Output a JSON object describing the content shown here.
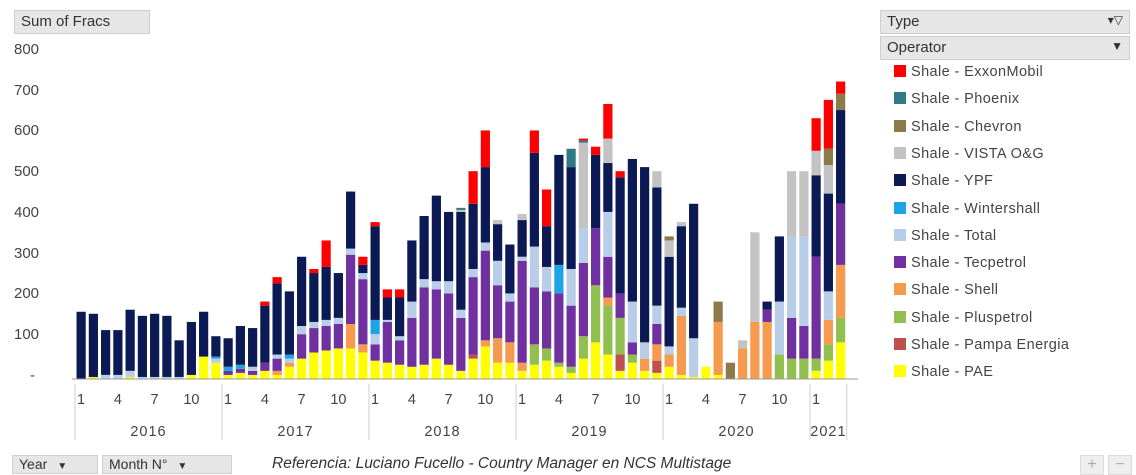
{
  "chart_data": {
    "type": "bar",
    "stacked": true,
    "title": "",
    "value_field": "Sum of Fracs",
    "filter_field": "Type",
    "legend_field": "Operator",
    "row_fields": [
      "Year",
      "Month N°"
    ],
    "ylim": [
      0,
      800
    ],
    "yticks": [
      "800",
      "700",
      "600",
      "500",
      "400",
      "300",
      "200",
      "100",
      "-"
    ],
    "xtick_labels": [
      "1",
      "4",
      "7",
      "10",
      "1",
      "4",
      "7",
      "10",
      "1",
      "4",
      "7",
      "10",
      "1",
      "4",
      "7",
      "10",
      "1",
      "4",
      "7",
      "10",
      "1"
    ],
    "years": [
      "2016",
      "2017",
      "2018",
      "2019",
      "2020",
      "2021"
    ],
    "grid": false,
    "legend_position": "right",
    "series_order": [
      "PAE",
      "Pampa",
      "Plus",
      "Shell",
      "Tec",
      "Total",
      "Wint",
      "YPF",
      "VISTA",
      "Chev",
      "Phoe",
      "Exxon"
    ],
    "series": [
      {
        "name": "Shale - ExxonMobil",
        "key": "Exxon",
        "color": "#ff0000"
      },
      {
        "name": "Shale - Phoenix",
        "key": "Phoe",
        "color": "#2e7a86"
      },
      {
        "name": "Shale - Chevron",
        "key": "Chev",
        "color": "#8c7a4a"
      },
      {
        "name": "Shale - VISTA O&G",
        "key": "VISTA",
        "color": "#c3c3c3"
      },
      {
        "name": "Shale - YPF",
        "key": "YPF",
        "color": "#0b1a55"
      },
      {
        "name": "Shale - Wintershall",
        "key": "Wint",
        "color": "#1ea4e6"
      },
      {
        "name": "Shale - Total",
        "key": "Total",
        "color": "#b8cde8"
      },
      {
        "name": "Shale - Tecpetrol",
        "key": "Tec",
        "color": "#7030a0"
      },
      {
        "name": "Shale - Shell",
        "key": "Shell",
        "color": "#f59a4e"
      },
      {
        "name": "Shale - Pluspetrol",
        "key": "Plus",
        "color": "#92c050"
      },
      {
        "name": "Shale - Pampa Energia",
        "key": "Pampa",
        "color": "#c0504d"
      },
      {
        "name": "Shale - PAE",
        "key": "PAE",
        "color": "#ffff00"
      }
    ],
    "data": [
      {
        "YPF": 165
      },
      {
        "PAE": 5,
        "YPF": 155
      },
      {
        "Total": 10,
        "YPF": 110
      },
      {
        "Total": 10,
        "YPF": 110
      },
      {
        "PAE": 5,
        "Total": 15,
        "YPF": 150
      },
      {
        "Total": 5,
        "YPF": 150
      },
      {
        "Total": 5,
        "YPF": 155
      },
      {
        "Total": 5,
        "YPF": 150
      },
      {
        "Total": 5,
        "YPF": 90
      },
      {
        "PAE": 10,
        "YPF": 130
      },
      {
        "PAE": 55,
        "YPF": 110
      },
      {
        "PAE": 40,
        "Total": 10,
        "Wint": 5,
        "YPF": 50
      },
      {
        "PAE": 10,
        "Tec": 10,
        "Wint": 10,
        "YPF": 70
      },
      {
        "PAE": 15,
        "Tec": 10,
        "Wint": 10,
        "YPF": 95
      },
      {
        "PAE": 10,
        "Tec": 10,
        "Total": 10,
        "YPF": 95
      },
      {
        "PAE": 20,
        "Tec": 20,
        "YPF": 140,
        "Exxon": 10
      },
      {
        "PAE": 10,
        "Shell": 10,
        "Tec": 30,
        "Total": 10,
        "YPF": 175,
        "Exxon": 15
      },
      {
        "PAE": 30,
        "Shell": 10,
        "Total": 10,
        "Wint": 10,
        "YPF": 155
      },
      {
        "PAE": 50,
        "Tec": 60,
        "Total": 20,
        "YPF": 170
      },
      {
        "PAE": 65,
        "Tec": 60,
        "Total": 15,
        "YPF": 120,
        "Exxon": 10
      },
      {
        "PAE": 70,
        "Tec": 60,
        "Total": 15,
        "YPF": 130,
        "Exxon": 65
      },
      {
        "PAE": 75,
        "Tec": 60,
        "Total": 15,
        "YPF": 110
      },
      {
        "PAE": 75,
        "Shell": 60,
        "Tec": 170,
        "Total": 15,
        "YPF": 140
      },
      {
        "PAE": 65,
        "Shell": 20,
        "Tec": 160,
        "Total": 15,
        "YPF": 20,
        "Exxon": 20
      },
      {
        "PAE": 45,
        "Tec": 40,
        "Total": 25,
        "Wint": 35,
        "YPF": 230,
        "Exxon": 10
      },
      {
        "PAE": 40,
        "Tec": 100,
        "Total": 5,
        "YPF": 55,
        "Exxon": 20
      },
      {
        "PAE": 35,
        "Tec": 60,
        "Total": 10,
        "YPF": 95,
        "Exxon": 20
      },
      {
        "PAE": 30,
        "Tec": 120,
        "Total": 40,
        "YPF": 150
      },
      {
        "PAE": 35,
        "Tec": 190,
        "Total": 20,
        "YPF": 155
      },
      {
        "PAE": 50,
        "Tec": 170,
        "Total": 20,
        "YPF": 210
      },
      {
        "PAE": 35,
        "Tec": 175,
        "Total": 30,
        "YPF": 170
      },
      {
        "PAE": 20,
        "Tec": 130,
        "Total": 20,
        "YPF": 240,
        "VISTA": 5,
        "Phoe": 5
      },
      {
        "PAE": 50,
        "Pampa": 10,
        "Tec": 190,
        "Total": 20,
        "YPF": 160,
        "Exxon": 80
      },
      {
        "PAE": 80,
        "Shell": 15,
        "Tec": 220,
        "Total": 20,
        "YPF": 185,
        "Exxon": 90
      },
      {
        "PAE": 40,
        "Shell": 60,
        "Tec": 130,
        "Total": 60,
        "YPF": 90,
        "VISTA": 10
      },
      {
        "PAE": 40,
        "Shell": 50,
        "Tec": 100,
        "Total": 20,
        "YPF": 120
      },
      {
        "PAE": 20,
        "Shell": 20,
        "Tec": 250,
        "Total": 10,
        "YPF": 90,
        "VISTA": 15
      },
      {
        "PAE": 35,
        "Plus": 50,
        "Tec": 140,
        "Total": 100,
        "YPF": 230,
        "Exxon": 55
      },
      {
        "PAE": 45,
        "Plus": 30,
        "Tec": 140,
        "Total": 60,
        "YPF": 100,
        "Exxon": 90
      },
      {
        "PAE": 30,
        "Plus": 10,
        "Tec": 170,
        "Wint": 70,
        "YPF": 270
      },
      {
        "PAE": 15,
        "Plus": 15,
        "Tec": 150,
        "Total": 90,
        "YPF": 250,
        "Phoe": 45
      },
      {
        "PAE": 50,
        "Plus": 55,
        "Tec": 180,
        "Total": 85,
        "VISTA": 210,
        "Phoe": 5,
        "Exxon": 5
      },
      {
        "PAE": 90,
        "Plus": 140,
        "Tec": 140,
        "YPF": 180,
        "Exxon": 20
      },
      {
        "PAE": 60,
        "Shell": 20,
        "Plus": 120,
        "Tec": 100,
        "Total": 110,
        "YPF": 120,
        "VISTA": 60,
        "Exxon": 85
      },
      {
        "PAE": 20,
        "Pampa": 40,
        "Plus": 90,
        "Tec": 60,
        "YPF": 285,
        "Exxon": 15
      },
      {
        "PAE": 40,
        "Plus": 20,
        "Tec": 30,
        "Total": 100,
        "YPF": 350
      },
      {
        "PAE": 20,
        "Shell": 30,
        "Total": 40,
        "YPF": 430
      },
      {
        "PAE": 15,
        "Pampa": 30,
        "Shell": 40,
        "Tec": 50,
        "Total": 45,
        "YPF": 290,
        "VISTA": 40
      },
      {
        "PAE": 30,
        "Shell": 30,
        "Total": 20,
        "YPF": 220,
        "VISTA": 40,
        "Chev": 10
      },
      {
        "PAE": 10,
        "Shell": 145,
        "Total": 20,
        "YPF": 200,
        "VISTA": 10
      },
      {
        "PAE": 5,
        "Total": 95,
        "YPF": 330
      },
      {
        "PAE": 30
      },
      {
        "PAE": 10,
        "Shell": 130,
        "Chev": 50
      },
      {
        "Chev": 40
      },
      {
        "Shell": 75,
        "VISTA": 20
      },
      {
        "Shell": 140,
        "VISTA": 220
      },
      {
        "Shell": 140,
        "Tec": 30,
        "YPF": 20
      },
      {
        "Plus": 60,
        "Total": 130,
        "YPF": 160
      },
      {
        "Plus": 50,
        "Tec": 100,
        "Total": 200,
        "VISTA": 160
      },
      {
        "Plus": 50,
        "Tec": 80,
        "Total": 220,
        "VISTA": 160
      },
      {
        "PAE": 20,
        "Plus": 30,
        "Tec": 250,
        "YPF": 200,
        "VISTA": 60,
        "Exxon": 80
      },
      {
        "PAE": 45,
        "Plus": 40,
        "Shell": 60,
        "Total": 70,
        "YPF": 240,
        "Chev": 40,
        "VISTA": 70,
        "Exxon": 120
      },
      {
        "PAE": 90,
        "Plus": 60,
        "Shell": 130,
        "Tec": 150,
        "YPF": 230,
        "Chev": 40,
        "Exxon": 30
      }
    ]
  },
  "ui": {
    "sum_label": "Sum of Fracs",
    "type_label": "Type",
    "operator_label": "Operator",
    "year_btn": "Year",
    "month_btn": "Month N°",
    "caption": "Referencia:  Luciano Fucello - Country Manager en NCS Multistage",
    "zoom_plus": "+",
    "zoom_minus": "−"
  }
}
